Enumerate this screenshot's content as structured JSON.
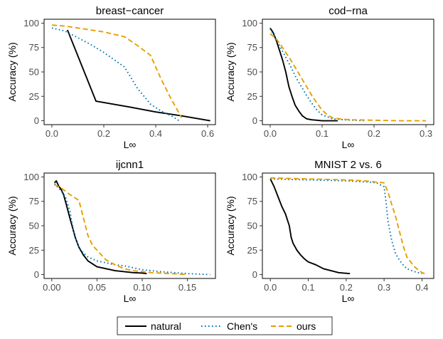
{
  "legend": {
    "placement": "bottom",
    "items": [
      {
        "label": "natural",
        "color": "#000000",
        "dash": "solid"
      },
      {
        "label": "Chen's",
        "color": "#0072B2",
        "dash": "dotted"
      },
      {
        "label": "ours",
        "color": "#E69F00",
        "dash": "dashed"
      }
    ]
  },
  "chart_data": [
    {
      "type": "line",
      "title": "breast−cancer",
      "xlabel": "L∞",
      "ylabel": "Accuracy (%)",
      "xlim": [
        -0.03,
        0.63
      ],
      "ylim": [
        -4,
        104
      ],
      "xticks": [
        0.0,
        0.2,
        0.4,
        0.6
      ],
      "xtick_labels": [
        "0.0",
        "0.2",
        "0.4",
        "0.6"
      ],
      "yticks": [
        0,
        25,
        50,
        75,
        100
      ],
      "ytick_labels": [
        "0",
        "25",
        "50",
        "75",
        "100"
      ],
      "grid": false,
      "series": [
        {
          "name": "natural",
          "x": [
            0.06,
            0.17,
            0.3,
            0.4,
            0.5,
            0.61
          ],
          "y": [
            93,
            20,
            14,
            9,
            5,
            0
          ]
        },
        {
          "name": "Chen's",
          "x": [
            0.0,
            0.05,
            0.1,
            0.15,
            0.2,
            0.28,
            0.33,
            0.38,
            0.42,
            0.46,
            0.49
          ],
          "y": [
            95,
            92,
            85,
            78,
            70,
            55,
            33,
            17,
            10,
            5,
            0
          ]
        },
        {
          "name": "ours",
          "x": [
            0.0,
            0.05,
            0.1,
            0.2,
            0.28,
            0.33,
            0.38,
            0.42,
            0.46,
            0.5
          ],
          "y": [
            98,
            97,
            95,
            91,
            86,
            77,
            67,
            43,
            22,
            3
          ]
        }
      ]
    },
    {
      "type": "line",
      "title": "cod−rna",
      "xlabel": "L∞",
      "ylabel": "Accuracy (%)",
      "xlim": [
        -0.015,
        0.315
      ],
      "ylim": [
        -4,
        104
      ],
      "xticks": [
        0.0,
        0.1,
        0.2,
        0.3
      ],
      "xtick_labels": [
        "0.0",
        "0.1",
        "0.2",
        "0.3"
      ],
      "yticks": [
        0,
        25,
        50,
        75,
        100
      ],
      "ytick_labels": [
        "0",
        "25",
        "50",
        "75",
        "100"
      ],
      "grid": false,
      "series": [
        {
          "name": "natural",
          "x": [
            0.0,
            0.006,
            0.012,
            0.018,
            0.024,
            0.03,
            0.036,
            0.042,
            0.048,
            0.055,
            0.062,
            0.07,
            0.08,
            0.09,
            0.1,
            0.13
          ],
          "y": [
            95,
            90,
            82,
            72,
            62,
            50,
            35,
            25,
            16,
            10,
            5,
            2,
            1,
            0.5,
            0,
            0
          ]
        },
        {
          "name": "Chen's",
          "x": [
            0.0,
            0.01,
            0.02,
            0.03,
            0.04,
            0.05,
            0.06,
            0.07,
            0.08,
            0.09,
            0.1,
            0.12,
            0.14,
            0.16,
            0.18
          ],
          "y": [
            94,
            85,
            75,
            65,
            55,
            44,
            35,
            26,
            18,
            11,
            6,
            2,
            1,
            0.5,
            0
          ]
        },
        {
          "name": "ours",
          "x": [
            0.0,
            0.01,
            0.02,
            0.03,
            0.04,
            0.05,
            0.06,
            0.07,
            0.08,
            0.09,
            0.1,
            0.11,
            0.12,
            0.14,
            0.16,
            0.2,
            0.25,
            0.3
          ],
          "y": [
            89,
            85,
            78,
            70,
            62,
            53,
            44,
            35,
            26,
            18,
            11,
            6,
            3,
            1.5,
            1,
            0.5,
            0,
            0
          ]
        }
      ]
    },
    {
      "type": "line",
      "title": "ijcnn1",
      "xlabel": "L∞",
      "ylabel": "Accuracy (%)",
      "xlim": [
        -0.0085,
        0.181
      ],
      "ylim": [
        -4,
        104
      ],
      "xticks": [
        0.0,
        0.05,
        0.1,
        0.15
      ],
      "xtick_labels": [
        "0.00",
        "0.05",
        "0.10",
        "0.15"
      ],
      "yticks": [
        0,
        25,
        50,
        75,
        100
      ],
      "ytick_labels": [
        "0",
        "25",
        "50",
        "75",
        "100"
      ],
      "grid": false,
      "series": [
        {
          "name": "natural",
          "x": [
            0.003,
            0.005,
            0.008,
            0.01,
            0.013,
            0.016,
            0.02,
            0.023,
            0.026,
            0.03,
            0.035,
            0.04,
            0.045,
            0.05,
            0.06,
            0.07,
            0.08,
            0.09,
            0.1,
            0.105
          ],
          "y": [
            94,
            96,
            90,
            88,
            82,
            72,
            58,
            48,
            38,
            28,
            20,
            14,
            11,
            8,
            6,
            4,
            3,
            2,
            1.5,
            1
          ]
        },
        {
          "name": "Chen's",
          "x": [
            0.003,
            0.006,
            0.01,
            0.015,
            0.02,
            0.025,
            0.03,
            0.035,
            0.04,
            0.05,
            0.06,
            0.07,
            0.08,
            0.09,
            0.1,
            0.12,
            0.15,
            0.175
          ],
          "y": [
            93,
            90,
            86,
            80,
            65,
            40,
            28,
            22,
            18,
            14,
            12,
            10,
            9,
            7,
            5,
            3,
            1,
            0
          ]
        },
        {
          "name": "ours",
          "x": [
            0.003,
            0.01,
            0.02,
            0.03,
            0.035,
            0.04,
            0.045,
            0.05,
            0.06,
            0.07,
            0.08,
            0.09,
            0.1,
            0.11,
            0.13,
            0.15
          ],
          "y": [
            92,
            89,
            82,
            76,
            58,
            40,
            30,
            25,
            15,
            10,
            6,
            4,
            3,
            2,
            1,
            0
          ]
        }
      ]
    },
    {
      "type": "line",
      "title": "MNIST 2 vs. 6",
      "xlabel": "L∞",
      "ylabel": "Accuracy (%)",
      "xlim": [
        -0.021,
        0.431
      ],
      "ylim": [
        -4,
        104
      ],
      "xticks": [
        0.0,
        0.1,
        0.2,
        0.3,
        0.4
      ],
      "xtick_labels": [
        "0.0",
        "0.1",
        "0.2",
        "0.3",
        "0.4"
      ],
      "yticks": [
        0,
        25,
        50,
        75,
        100
      ],
      "ytick_labels": [
        "0",
        "25",
        "50",
        "75",
        "100"
      ],
      "grid": false,
      "series": [
        {
          "name": "natural",
          "x": [
            0.0,
            0.01,
            0.02,
            0.03,
            0.04,
            0.05,
            0.055,
            0.06,
            0.07,
            0.08,
            0.09,
            0.1,
            0.12,
            0.14,
            0.16,
            0.18,
            0.21
          ],
          "y": [
            98,
            90,
            80,
            70,
            62,
            50,
            38,
            32,
            25,
            20,
            16,
            13,
            10,
            6,
            4,
            2,
            1
          ]
        },
        {
          "name": "Chen's",
          "x": [
            0.0,
            0.05,
            0.1,
            0.15,
            0.2,
            0.25,
            0.28,
            0.3,
            0.305,
            0.31,
            0.32,
            0.33,
            0.34,
            0.35,
            0.36,
            0.38,
            0.4
          ],
          "y": [
            98,
            97.5,
            97,
            96.5,
            96,
            95,
            94,
            90,
            75,
            55,
            35,
            22,
            15,
            10,
            6,
            3,
            1
          ]
        },
        {
          "name": "ours",
          "x": [
            0.0,
            0.05,
            0.1,
            0.15,
            0.2,
            0.25,
            0.3,
            0.31,
            0.32,
            0.33,
            0.34,
            0.35,
            0.36,
            0.38,
            0.4,
            0.41
          ],
          "y": [
            99,
            98.5,
            98,
            97.5,
            97,
            96,
            94,
            85,
            72,
            60,
            45,
            30,
            18,
            8,
            2,
            0.5
          ]
        }
      ]
    }
  ]
}
